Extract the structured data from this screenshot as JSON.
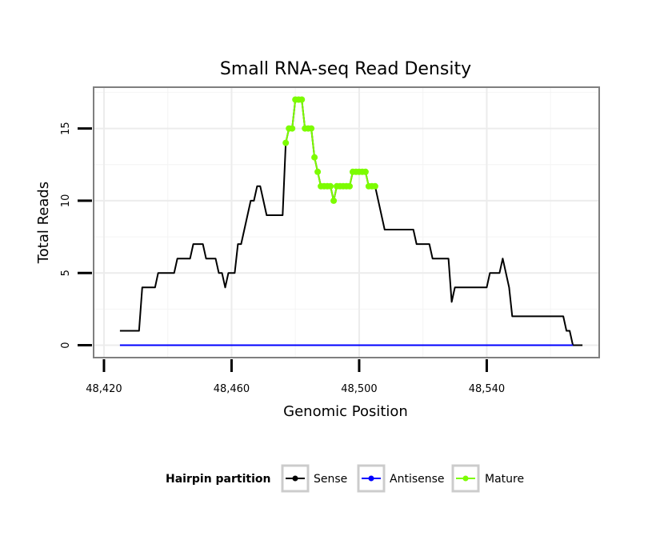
{
  "chart_data": {
    "type": "line",
    "title": "Small RNA-seq Read Density",
    "xlabel": "Genomic Position",
    "ylabel": "Total Reads",
    "xlim": [
      48417,
      48575
    ],
    "ylim": [
      -0.8,
      17.8
    ],
    "x_ticks": [
      48420,
      48460,
      48500,
      48540
    ],
    "x_tick_labels": [
      "48,420",
      "48,460",
      "48,500",
      "48,540"
    ],
    "y_ticks": [
      0,
      5,
      10,
      15
    ],
    "y_tick_labels": [
      "0",
      "5",
      "10",
      "15"
    ],
    "legend": {
      "title": "Hairpin partition",
      "position": "bottom",
      "items": [
        {
          "label": "Sense",
          "color": "#000000"
        },
        {
          "label": "Antisense",
          "color": "#0000ff"
        },
        {
          "label": "Mature",
          "color": "#7cfc00"
        }
      ]
    },
    "series": [
      {
        "name": "Sense",
        "color": "#000000",
        "points": [
          [
            48425,
            1
          ],
          [
            48431,
            1
          ],
          [
            48432,
            4
          ],
          [
            48436,
            4
          ],
          [
            48437,
            5
          ],
          [
            48442,
            5
          ],
          [
            48443,
            6
          ],
          [
            48447,
            6
          ],
          [
            48448,
            7
          ],
          [
            48451,
            7
          ],
          [
            48452,
            6
          ],
          [
            48455,
            6
          ],
          [
            48456,
            5
          ],
          [
            48457,
            5
          ],
          [
            48458,
            4
          ],
          [
            48459,
            5
          ],
          [
            48461,
            5
          ],
          [
            48462,
            7
          ],
          [
            48463,
            7
          ],
          [
            48466,
            10
          ],
          [
            48467,
            10
          ],
          [
            48468,
            11
          ],
          [
            48469,
            11
          ],
          [
            48471,
            9
          ],
          [
            48476,
            9
          ],
          [
            48477,
            14
          ],
          [
            48478,
            15
          ],
          [
            48479,
            15
          ],
          [
            48480,
            17
          ],
          [
            48482,
            17
          ],
          [
            48483,
            15
          ],
          [
            48485,
            15
          ],
          [
            48486,
            13
          ],
          [
            48487,
            12
          ],
          [
            48488,
            11
          ],
          [
            48491,
            11
          ],
          [
            48492,
            10
          ],
          [
            48493,
            11
          ],
          [
            48497,
            11
          ],
          [
            48498,
            12
          ],
          [
            48502,
            12
          ],
          [
            48503,
            11
          ],
          [
            48505,
            11
          ],
          [
            48508,
            8
          ],
          [
            48517,
            8
          ],
          [
            48518,
            7
          ],
          [
            48522,
            7
          ],
          [
            48523,
            6
          ],
          [
            48528,
            6
          ],
          [
            48529,
            3
          ],
          [
            48530,
            4
          ],
          [
            48540,
            4
          ],
          [
            48541,
            5
          ],
          [
            48544,
            5
          ],
          [
            48545,
            6
          ],
          [
            48546,
            5
          ],
          [
            48547,
            4
          ],
          [
            48548,
            2
          ],
          [
            48564,
            2
          ],
          [
            48565,
            1
          ],
          [
            48566,
            1
          ],
          [
            48567,
            0
          ],
          [
            48570,
            0
          ]
        ]
      },
      {
        "name": "Antisense",
        "color": "#0000ff",
        "points": [
          [
            48425,
            0
          ],
          [
            48567,
            0
          ]
        ]
      },
      {
        "name": "Mature",
        "color": "#7cfc00",
        "points": [
          [
            48477,
            14
          ],
          [
            48478,
            15
          ],
          [
            48479,
            15
          ],
          [
            48480,
            17
          ],
          [
            48481,
            17
          ],
          [
            48482,
            17
          ],
          [
            48483,
            15
          ],
          [
            48484,
            15
          ],
          [
            48485,
            15
          ],
          [
            48486,
            13
          ],
          [
            48487,
            12
          ],
          [
            48488,
            11
          ],
          [
            48489,
            11
          ],
          [
            48490,
            11
          ],
          [
            48491,
            11
          ],
          [
            48492,
            10
          ],
          [
            48493,
            11
          ],
          [
            48494,
            11
          ],
          [
            48495,
            11
          ],
          [
            48496,
            11
          ],
          [
            48497,
            11
          ],
          [
            48498,
            12
          ],
          [
            48499,
            12
          ],
          [
            48500,
            12
          ],
          [
            48501,
            12
          ],
          [
            48502,
            12
          ],
          [
            48503,
            11
          ],
          [
            48504,
            11
          ],
          [
            48505,
            11
          ]
        ]
      }
    ]
  }
}
